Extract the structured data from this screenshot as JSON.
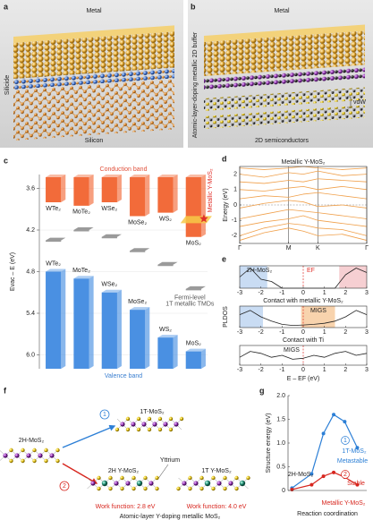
{
  "figure": {
    "a": {
      "label": "a",
      "metal": "Metal",
      "silicide": "Silicide",
      "silicon": "Silicon"
    },
    "b": {
      "label": "b",
      "metal": "Metal",
      "buffer": "Atomic-layer-doping metallic 2D buffer",
      "vdw": "vdW",
      "semiconductors": "2D semiconductors"
    },
    "c": {
      "label": "c"
    },
    "d": {
      "label": "d"
    },
    "e": {
      "label": "e"
    },
    "f": {
      "label": "f",
      "start": "2H-MoS₂",
      "path1": "1",
      "path2": "2",
      "product1": "1T-MoS₂",
      "doped2h": "2H Y-MoS₂",
      "yttrium": "Yttrium",
      "doped1t": "1T Y-MoS₂",
      "wf1": "Work function: 2.8 eV",
      "wf2": "Work function: 4.0 eV",
      "caption": "Atomic-layer Y-doping metallic MoS₂"
    },
    "g": {
      "label": "g"
    }
  },
  "chart_data": [
    {
      "type": "bar",
      "conduction_label": "Conduction band",
      "valence_label": "Valence band",
      "y_label": "Evac – E (eV)",
      "categories": [
        "WTe₂",
        "MoTe₂",
        "WSe₂",
        "MoSe₂",
        "WS₂",
        "MoS₂"
      ],
      "cbm": [
        3.8,
        3.85,
        3.8,
        4.0,
        3.95,
        4.3
      ],
      "vbm": [
        4.8,
        4.9,
        5.1,
        5.35,
        5.75,
        5.95
      ],
      "fermi": [
        4.35,
        4.2,
        4.3,
        4.5,
        4.7,
        5.05
      ],
      "conduction_color": "#f26b3a",
      "valence_color": "#4a90e2",
      "fermi_color": "#9a9a9a",
      "metal_name": "Metallic Y-MoS₂",
      "metal_value": 4.05,
      "metal_color": "#f7c948",
      "fermi_name_1": "Fermi-level",
      "fermi_name_2": "1T metallic TMDs",
      "ylim": [
        3.4,
        6.2
      ],
      "yticks": [
        3.6,
        4.2,
        4.8,
        5.4,
        {
          "value": 6,
          "label": "6.0"
        }
      ]
    },
    {
      "type": "line",
      "title": "Metallic Y-MoS₂",
      "y_label": "Energy (eV)",
      "frame": true,
      "xgrid": true,
      "zero_line": true,
      "x": [
        0,
        0.5,
        1,
        1.3,
        1.6,
        2.1,
        2.6
      ],
      "xlim": [
        0,
        2.6
      ],
      "xticks": [
        {
          "value": 0,
          "label": "Γ"
        },
        {
          "value": 1,
          "label": "M"
        },
        {
          "value": 1.6,
          "label": "K"
        },
        {
          "value": 2.6,
          "label": "Γ"
        }
      ],
      "ylim": [
        -2.5,
        2.5
      ],
      "yticks": [
        -2,
        -1,
        0,
        1,
        2
      ],
      "series": [
        {
          "color": "#f0a04b",
          "values": [
            -2.3,
            -1.8,
            -1.5,
            -1.7,
            -2.0,
            -1.9,
            -2.3
          ]
        },
        {
          "color": "#f0a04b",
          "values": [
            -2.0,
            -1.5,
            -1.2,
            -1.3,
            -1.5,
            -1.6,
            -2.0
          ]
        },
        {
          "color": "#f0a04b",
          "values": [
            -1.4,
            -1.1,
            -0.9,
            -0.7,
            -1.0,
            -1.2,
            -1.4
          ]
        },
        {
          "color": "#f0a04b",
          "values": [
            -0.9,
            -0.6,
            -0.3,
            -0.4,
            -0.5,
            -0.7,
            -0.9
          ]
        },
        {
          "color": "#f0a04b",
          "values": [
            -0.2,
            0.1,
            0.3,
            0.2,
            -0.1,
            0,
            -0.2
          ]
        },
        {
          "color": "#f0a04b",
          "values": [
            0.4,
            0.6,
            0.5,
            0.7,
            0.8,
            0.6,
            0.4
          ]
        },
        {
          "color": "#f0a04b",
          "values": [
            1.0,
            0.9,
            1.1,
            1.2,
            1.0,
            1.2,
            1.0
          ]
        },
        {
          "color": "#f0a04b",
          "values": [
            1.5,
            1.4,
            1.6,
            1.5,
            1.7,
            1.6,
            1.5
          ]
        },
        {
          "color": "#f0a04b",
          "values": [
            2.0,
            1.8,
            2.1,
            2.0,
            2.2,
            1.9,
            2.0
          ]
        },
        {
          "color": "#f0a04b",
          "values": [
            2.4,
            2.3,
            2.4,
            2.5,
            2.4,
            2.3,
            2.4
          ]
        }
      ]
    },
    {
      "type": "line",
      "title": "2H-MoS₂",
      "marker_label": "EF",
      "marker": 0,
      "frame": true,
      "note": "Contact with metallic Y-MoS₂",
      "x": [
        -3,
        -2.5,
        -2,
        -1.5,
        -1,
        -0.5,
        0,
        0.5,
        1,
        1.5,
        2,
        2.5,
        3
      ],
      "xlim": [
        -3,
        3
      ],
      "xticks": [
        -3,
        -2,
        -1,
        0,
        1,
        2,
        3
      ],
      "ylim": [
        0,
        1
      ],
      "regions": [
        {
          "from": -3,
          "to": -1.7,
          "color": "#c9dcf3"
        },
        {
          "from": 1.7,
          "to": 3,
          "color": "#f6cfd2"
        }
      ],
      "series": [
        {
          "color": "#222222",
          "values": [
            0.5,
            0.9,
            0.4,
            0.3,
            0,
            0,
            0,
            0,
            0,
            0,
            0.6,
            0.9,
            0.7
          ]
        }
      ]
    },
    {
      "type": "line",
      "y_label": "PLDOS",
      "annotation": "MIGS",
      "marker": 0,
      "frame": true,
      "note": "Contact with Ti",
      "x": [
        -3,
        -2.5,
        -2,
        -1.5,
        -1,
        -0.5,
        0,
        0.5,
        1,
        1.5,
        2,
        2.5,
        3
      ],
      "xlim": [
        -3,
        3
      ],
      "xticks": [
        -3,
        -2,
        -1,
        0,
        1,
        2,
        3
      ],
      "ylim": [
        0,
        1
      ],
      "regions": [
        {
          "from": -3,
          "to": -1.9,
          "color": "#c9dcf3"
        },
        {
          "from": -0.1,
          "to": 1.5,
          "color": "#f8d3ad"
        }
      ],
      "series": [
        {
          "color": "#222222",
          "values": [
            0.6,
            0.8,
            0.5,
            0.3,
            0.15,
            0.1,
            0.12,
            0.15,
            0.2,
            0.3,
            0.5,
            0.8,
            0.6
          ]
        }
      ]
    },
    {
      "type": "line",
      "annotation": "MIGS",
      "marker": 0,
      "frame": true,
      "x_label": "E – EF (eV)",
      "x": [
        -3,
        -2.5,
        -2,
        -1.5,
        -1,
        -0.5,
        0,
        0.5,
        1,
        1.5,
        2,
        2.5,
        3
      ],
      "xlim": [
        -3,
        3
      ],
      "xticks": [
        -3,
        -2,
        -1,
        0,
        1,
        2,
        3
      ],
      "ylim": [
        0,
        1
      ],
      "series": [
        {
          "color": "#222222",
          "values": [
            0.4,
            0.7,
            0.6,
            0.4,
            0.5,
            0.3,
            0.35,
            0.5,
            0.4,
            0.6,
            0.7,
            0.5,
            0.6
          ]
        }
      ]
    },
    {
      "type": "line",
      "y_label": "Structure energy (eV)",
      "x_label": "Reaction coordination",
      "markers": true,
      "xlim": [
        0,
        1
      ],
      "ylim": [
        0,
        2
      ],
      "yticks": [
        0,
        0.5,
        {
          "value": 1,
          "label": "1.0"
        },
        1.5,
        {
          "value": 2,
          "label": "2.0"
        }
      ],
      "start": "2H-MoS₂",
      "end1": "1T-MoS₂",
      "state1": "Metastable",
      "state2": "Stable",
      "end2": "Metallic Y-MoS₂",
      "path1": "1",
      "path2": "2",
      "series": [
        {
          "color": "#2c7fd6",
          "x": [
            0.05,
            0.3,
            0.45,
            0.58,
            0.72,
            0.88
          ],
          "values": [
            0.05,
            0.35,
            1.2,
            1.6,
            1.45,
            0.9
          ]
        },
        {
          "color": "#d7261e",
          "x": [
            0.05,
            0.3,
            0.45,
            0.58,
            0.72,
            0.88
          ],
          "values": [
            0.02,
            0.12,
            0.3,
            0.38,
            0.28,
            0.12
          ]
        }
      ]
    }
  ]
}
